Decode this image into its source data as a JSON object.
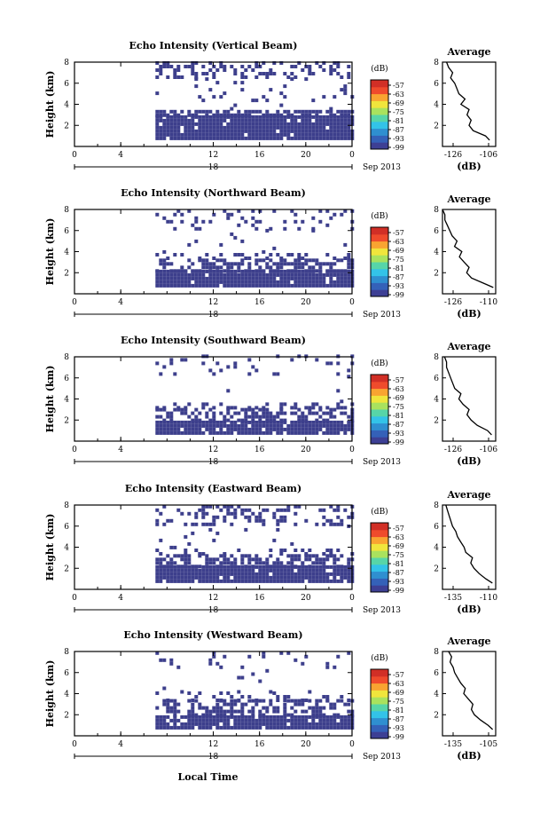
{
  "figure": {
    "shared_xlabel": "Local Time",
    "date_label": "Sep 2013",
    "day_label": "18",
    "height_ylabel": "Height (km)",
    "avg_title": "Average",
    "unit_label": "(dB)"
  },
  "colorbar": {
    "ticks": [
      "-57",
      "-63",
      "-69",
      "-75",
      "-81",
      "-87",
      "-93",
      "-99"
    ],
    "colors": [
      "#3d3f94",
      "#3461b8",
      "#2f8fd0",
      "#33c3e8",
      "#57d5a8",
      "#a9e25e",
      "#f0e53c",
      "#f9a431",
      "#ef4b2c",
      "#d12f26"
    ]
  },
  "fill_color": "#3d3f8c",
  "chart_data": [
    {
      "type": "heatmap",
      "title": "Echo Intensity (Vertical Beam)",
      "xlabel": "",
      "ylabel": "Height (km)",
      "x_ticks": [
        "0",
        "4",
        "12",
        "16",
        "20",
        "0"
      ],
      "y_ticks": [
        "2",
        "4",
        "6",
        "8"
      ],
      "xlim": [
        0,
        24
      ],
      "ylim": [
        0,
        8
      ],
      "echo_start_hour": 7,
      "layers": [
        {
          "from_km": 0.6,
          "to_km": 2.8,
          "fill": 0.95
        },
        {
          "from_km": 2.8,
          "to_km": 3.4,
          "fill": 0.7
        },
        {
          "from_km": 3.4,
          "to_km": 4.2,
          "fill": 0.04
        },
        {
          "from_km": 4.2,
          "to_km": 6.4,
          "fill": 0.06
        },
        {
          "from_km": 6.4,
          "to_km": 8.0,
          "fill": 0.3
        }
      ],
      "average_profile": {
        "title": "Average",
        "xlabel": "(dB)",
        "x_ticks": [
          "-126",
          "-106"
        ],
        "y_ticks": [
          "2",
          "4",
          "6",
          "8"
        ],
        "xlim": [
          -130,
          -104
        ],
        "ylim": [
          0,
          8
        ],
        "height_km": [
          0.6,
          1.0,
          1.5,
          2.0,
          2.5,
          3.0,
          3.5,
          4.0,
          4.5,
          5.0,
          5.5,
          6.0,
          6.5,
          7.0,
          7.5,
          8.0
        ],
        "db": [
          -107,
          -109,
          -115,
          -117,
          -116,
          -118,
          -117,
          -121,
          -119,
          -122,
          -123,
          -124,
          -126,
          -125,
          -127,
          -128
        ]
      }
    },
    {
      "type": "heatmap",
      "title": "Echo Intensity (Northward Beam)",
      "xlabel": "",
      "ylabel": "Height (km)",
      "x_ticks": [
        "0",
        "4",
        "12",
        "16",
        "20",
        "0"
      ],
      "y_ticks": [
        "2",
        "4",
        "6",
        "8"
      ],
      "xlim": [
        0,
        24
      ],
      "ylim": [
        0,
        8
      ],
      "echo_start_hour": 7,
      "layers": [
        {
          "from_km": 0.6,
          "to_km": 2.0,
          "fill": 0.95
        },
        {
          "from_km": 2.0,
          "to_km": 3.2,
          "fill": 0.55
        },
        {
          "from_km": 3.2,
          "to_km": 3.8,
          "fill": 0.25
        },
        {
          "from_km": 3.8,
          "to_km": 6.0,
          "fill": 0.03
        },
        {
          "from_km": 6.0,
          "to_km": 8.0,
          "fill": 0.22
        }
      ],
      "average_profile": {
        "title": "Average",
        "xlabel": "(dB)",
        "x_ticks": [
          "-126",
          "-110"
        ],
        "y_ticks": [
          "2",
          "4",
          "6",
          "8"
        ],
        "xlim": [
          -130,
          -108
        ],
        "ylim": [
          0,
          8
        ],
        "height_km": [
          0.6,
          1.0,
          1.5,
          2.0,
          2.5,
          3.0,
          3.5,
          4.0,
          4.5,
          5.0,
          5.5,
          6.0,
          6.5,
          7.0,
          7.5,
          8.0
        ],
        "db": [
          -109,
          -113,
          -118,
          -120,
          -119,
          -121,
          -123,
          -122,
          -125,
          -124,
          -126,
          -127,
          -128,
          -129,
          -129,
          -130
        ]
      }
    },
    {
      "type": "heatmap",
      "title": "Echo Intensity (Southward Beam)",
      "xlabel": "",
      "ylabel": "Height (km)",
      "x_ticks": [
        "0",
        "4",
        "12",
        "16",
        "20",
        "0"
      ],
      "y_ticks": [
        "2",
        "4",
        "6",
        "8"
      ],
      "xlim": [
        0,
        24
      ],
      "ylim": [
        0,
        8
      ],
      "echo_start_hour": 7,
      "layers": [
        {
          "from_km": 0.6,
          "to_km": 1.8,
          "fill": 0.95
        },
        {
          "from_km": 1.8,
          "to_km": 3.0,
          "fill": 0.5
        },
        {
          "from_km": 3.0,
          "to_km": 3.6,
          "fill": 0.3
        },
        {
          "from_km": 3.6,
          "to_km": 6.2,
          "fill": 0.02
        },
        {
          "from_km": 6.2,
          "to_km": 8.0,
          "fill": 0.1
        }
      ],
      "average_profile": {
        "title": "Average",
        "xlabel": "(dB)",
        "x_ticks": [
          "-126",
          "-106"
        ],
        "y_ticks": [
          "2",
          "4",
          "6",
          "8"
        ],
        "xlim": [
          -130,
          -104
        ],
        "ylim": [
          0,
          8
        ],
        "height_km": [
          0.6,
          1.0,
          1.5,
          2.0,
          2.5,
          3.0,
          3.5,
          4.0,
          4.5,
          5.0,
          5.5,
          6.0,
          6.5,
          7.0,
          7.5,
          8.0
        ],
        "db": [
          -106,
          -108,
          -113,
          -116,
          -118,
          -117,
          -120,
          -122,
          -121,
          -124,
          -125,
          -126,
          -127,
          -128,
          -128,
          -129
        ]
      }
    },
    {
      "type": "heatmap",
      "title": "Echo Intensity (Eastward Beam)",
      "xlabel": "",
      "ylabel": "Height (km)",
      "x_ticks": [
        "0",
        "4",
        "12",
        "16",
        "20",
        "0"
      ],
      "y_ticks": [
        "2",
        "4",
        "6",
        "8"
      ],
      "xlim": [
        0,
        24
      ],
      "ylim": [
        0,
        8
      ],
      "echo_start_hour": 7,
      "layers": [
        {
          "from_km": 0.6,
          "to_km": 2.0,
          "fill": 0.95
        },
        {
          "from_km": 2.0,
          "to_km": 3.2,
          "fill": 0.55
        },
        {
          "from_km": 3.2,
          "to_km": 3.8,
          "fill": 0.2
        },
        {
          "from_km": 3.8,
          "to_km": 6.0,
          "fill": 0.03
        },
        {
          "from_km": 6.0,
          "to_km": 8.0,
          "fill": 0.28
        }
      ],
      "average_profile": {
        "title": "Average",
        "xlabel": "(dB)",
        "x_ticks": [
          "-135",
          "-110"
        ],
        "y_ticks": [
          "2",
          "4",
          "6",
          "8"
        ],
        "xlim": [
          -138,
          -106
        ],
        "ylim": [
          0,
          8
        ],
        "height_km": [
          0.6,
          1.0,
          1.5,
          2.0,
          2.5,
          3.0,
          3.5,
          4.0,
          4.5,
          5.0,
          5.5,
          6.0,
          6.5,
          7.0,
          7.5,
          8.0
        ],
        "db": [
          -108,
          -112,
          -116,
          -119,
          -121,
          -120,
          -124,
          -125,
          -127,
          -129,
          -130,
          -132,
          -133,
          -134,
          -135,
          -136
        ]
      }
    },
    {
      "type": "heatmap",
      "title": "Echo Intensity (Westward Beam)",
      "xlabel": "Local Time",
      "ylabel": "Height (km)",
      "x_ticks": [
        "0",
        "4",
        "12",
        "16",
        "20",
        "0"
      ],
      "y_ticks": [
        "2",
        "4",
        "6",
        "8"
      ],
      "xlim": [
        0,
        24
      ],
      "ylim": [
        0,
        8
      ],
      "echo_start_hour": 7,
      "layers": [
        {
          "from_km": 0.6,
          "to_km": 1.8,
          "fill": 0.95
        },
        {
          "from_km": 1.8,
          "to_km": 3.2,
          "fill": 0.5
        },
        {
          "from_km": 3.2,
          "to_km": 4.0,
          "fill": 0.12
        },
        {
          "from_km": 4.0,
          "to_km": 6.0,
          "fill": 0.02
        },
        {
          "from_km": 6.0,
          "to_km": 8.0,
          "fill": 0.08
        }
      ],
      "average_profile": {
        "title": "Average",
        "xlabel": "(dB)",
        "x_ticks": [
          "-135",
          "-105"
        ],
        "y_ticks": [
          "2",
          "4",
          "6",
          "8"
        ],
        "xlim": [
          -138,
          -103
        ],
        "ylim": [
          0,
          8
        ],
        "height_km": [
          0.6,
          1.0,
          1.5,
          2.0,
          2.5,
          3.0,
          3.5,
          4.0,
          4.5,
          5.0,
          5.5,
          6.0,
          6.5,
          7.0,
          7.5,
          8.0
        ],
        "db": [
          -105,
          -108,
          -113,
          -117,
          -119,
          -118,
          -121,
          -124,
          -123,
          -126,
          -128,
          -130,
          -131,
          -133,
          -132,
          -134
        ]
      }
    }
  ]
}
